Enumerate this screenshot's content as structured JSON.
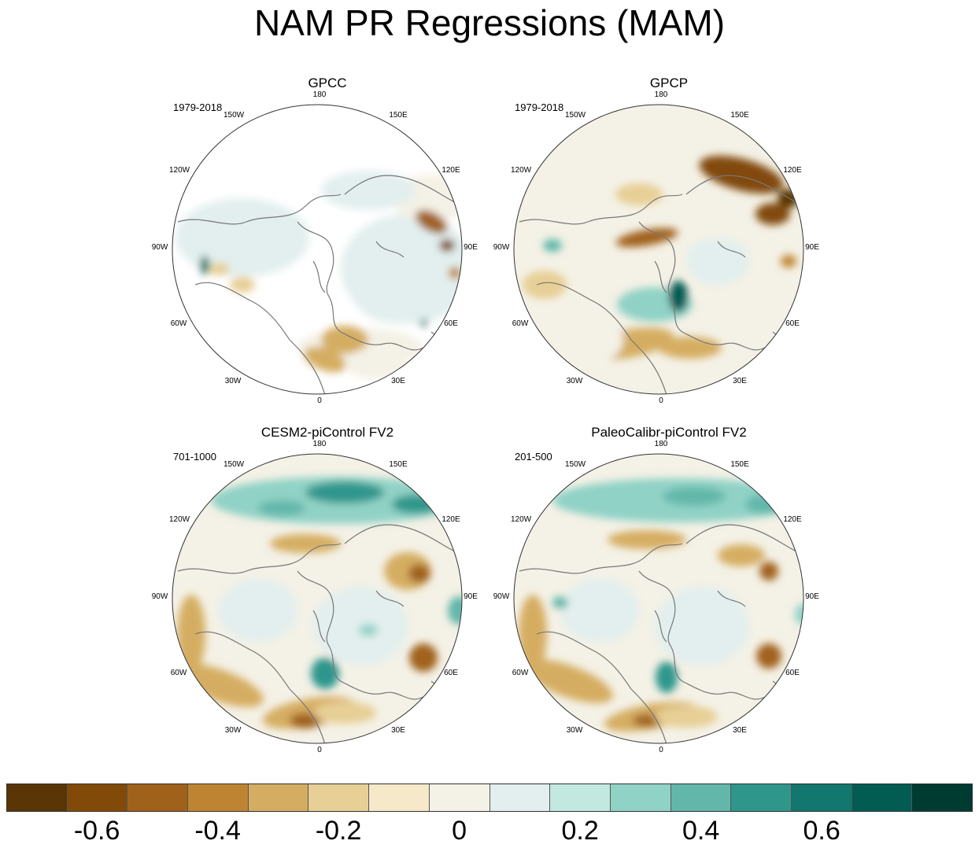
{
  "title": "NAM PR Regressions (MAM)",
  "panels": [
    {
      "title": "GPCC",
      "period": "1979-2018",
      "masked": true
    },
    {
      "title": "GPCP",
      "period": "1979-2018",
      "masked": false
    },
    {
      "title": "CESM2-piControl FV2",
      "period": "701-1000",
      "masked": false
    },
    {
      "title": "PaleoCalibr-piControl FV2",
      "period": "201-500",
      "masked": false
    }
  ],
  "lon_labels": {
    "top": "180",
    "top_right": "150E",
    "right_upper": "120E",
    "right": "90E",
    "right_lower": "60E",
    "bottom_right": "30E",
    "bottom": "0",
    "bottom_left": "30W",
    "left_lower": "60W",
    "left": "90W",
    "left_upper": "120W",
    "top_left": "150W"
  },
  "colorbar": {
    "colors": [
      "#5a3505",
      "#814a09",
      "#a0621a",
      "#bf8432",
      "#d5ad62",
      "#e7cf95",
      "#f5e9c9",
      "#f4f1e6",
      "#e2efee",
      "#c3e8e0",
      "#91d2c6",
      "#62b7aa",
      "#2f968c",
      "#12776e",
      "#035c52",
      "#003b31"
    ],
    "labels": [
      "-0.6",
      "-0.4",
      "-0.2",
      "0",
      "0.2",
      "0.4",
      "0.6"
    ]
  }
}
